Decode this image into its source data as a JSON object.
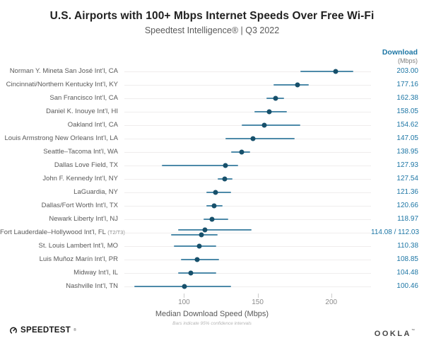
{
  "header": {
    "title": "U.S. Airports with 100+ Mbps Internet Speeds Over Free Wi-Fi",
    "subtitle": "Speedtest Intelligence® | Q3 2022"
  },
  "value_column": {
    "header_line1": "Download",
    "header_line2": "(Mbps)"
  },
  "chart_data": {
    "type": "scatter",
    "title": "U.S. Airports with 100+ Mbps Internet Speeds Over Free Wi-Fi",
    "subtitle": "Speedtest Intelligence® | Q3 2022",
    "xlabel": "Median Download Speed (Mbps)",
    "note": "Bars indicate 95% confidence intervals",
    "legend": "none",
    "grid": "horizontal-row-lines",
    "x_ticks": [
      100,
      150,
      200
    ],
    "x_domain": [
      59,
      227
    ],
    "rows": [
      {
        "label": "Norman Y. Mineta San José Int’l, CA",
        "suffix": "",
        "display": "203.00",
        "points": [
          {
            "median": 203.0,
            "ci_low": 179,
            "ci_high": 215
          }
        ]
      },
      {
        "label": "Cincinnati/Northern Kentucky Int’l, KY",
        "suffix": "",
        "display": "177.16",
        "points": [
          {
            "median": 177.16,
            "ci_low": 161,
            "ci_high": 185
          }
        ]
      },
      {
        "label": "San Francisco Int’l, CA",
        "suffix": "",
        "display": "162.38",
        "points": [
          {
            "median": 162.38,
            "ci_low": 156,
            "ci_high": 168
          }
        ]
      },
      {
        "label": "Daniel K. Inouye Int’l, HI",
        "suffix": "",
        "display": "158.05",
        "points": [
          {
            "median": 158.05,
            "ci_low": 148,
            "ci_high": 170
          }
        ]
      },
      {
        "label": "Oakland Int’l, CA",
        "suffix": "",
        "display": "154.62",
        "points": [
          {
            "median": 154.62,
            "ci_low": 139,
            "ci_high": 179
          }
        ]
      },
      {
        "label": "Louis Armstrong New Orleans Int’l, LA",
        "suffix": "",
        "display": "147.05",
        "points": [
          {
            "median": 147.05,
            "ci_low": 128,
            "ci_high": 175
          }
        ]
      },
      {
        "label": "Seattle–Tacoma Int’l, WA",
        "suffix": "",
        "display": "138.95",
        "points": [
          {
            "median": 138.95,
            "ci_low": 132,
            "ci_high": 145
          }
        ]
      },
      {
        "label": "Dallas Love Field, TX",
        "suffix": "",
        "display": "127.93",
        "points": [
          {
            "median": 127.93,
            "ci_low": 85,
            "ci_high": 137
          }
        ]
      },
      {
        "label": "John F. Kennedy Int’l, NY",
        "suffix": "",
        "display": "127.54",
        "points": [
          {
            "median": 127.54,
            "ci_low": 123,
            "ci_high": 133
          }
        ]
      },
      {
        "label": "LaGuardia, NY",
        "suffix": "",
        "display": "121.36",
        "points": [
          {
            "median": 121.36,
            "ci_low": 115,
            "ci_high": 132
          }
        ]
      },
      {
        "label": "Dallas/Fort Worth Int’l, TX",
        "suffix": "",
        "display": "120.66",
        "points": [
          {
            "median": 120.66,
            "ci_low": 115,
            "ci_high": 126
          }
        ]
      },
      {
        "label": "Newark Liberty Int’l, NJ",
        "suffix": "",
        "display": "118.97",
        "points": [
          {
            "median": 118.97,
            "ci_low": 113,
            "ci_high": 130
          }
        ]
      },
      {
        "label": "Fort Lauderdale–Hollywood Int’l, FL",
        "suffix": "(T2/T3)",
        "display": "114.08 / 112.03",
        "points": [
          {
            "median": 114.08,
            "ci_low": 96,
            "ci_high": 146
          },
          {
            "median": 112.03,
            "ci_low": 91,
            "ci_high": 123
          }
        ]
      },
      {
        "label": "St. Louis Lambert Int’l, MO",
        "suffix": "",
        "display": "110.38",
        "points": [
          {
            "median": 110.38,
            "ci_low": 93,
            "ci_high": 122
          }
        ]
      },
      {
        "label": "Luis Muñoz Marín Int’l, PR",
        "suffix": "",
        "display": "108.85",
        "points": [
          {
            "median": 108.85,
            "ci_low": 98,
            "ci_high": 124
          }
        ]
      },
      {
        "label": "Midway Int’l, IL",
        "suffix": "",
        "display": "104.48",
        "points": [
          {
            "median": 104.48,
            "ci_low": 96,
            "ci_high": 122
          }
        ]
      },
      {
        "label": "Nashville Int’l, TN",
        "suffix": "",
        "display": "100.46",
        "points": [
          {
            "median": 100.46,
            "ci_low": 66,
            "ci_high": 132
          }
        ]
      }
    ]
  },
  "colors": {
    "accent_blue": "#1d76a5",
    "dot": "#17506b",
    "bar": "#4d8aa9",
    "grid": "#efeded"
  },
  "footer": {
    "speedtest": "SPEEDTEST",
    "speedtest_mark": "®",
    "ookla": "OOKLA",
    "ookla_mark": "™"
  }
}
